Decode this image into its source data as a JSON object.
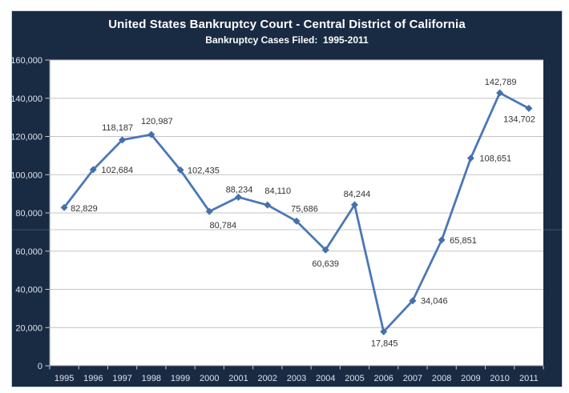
{
  "page": {
    "background": "#FFFFFF"
  },
  "colors": {
    "panel_bg": "#192B43",
    "panel_border": "#CBD2DD",
    "plot_bg": "#FFFFFF",
    "gridline": "#C3C3C3",
    "axis_line_x": "#76808B",
    "axis_line_y": "#8C939C",
    "tick": "#C6CCD5",
    "axis_text": "#DDE3EC",
    "title_text": "#FFFFFF",
    "series_line": "#4B77B5",
    "marker_fill": "#4470AD",
    "data_label_text": "#333333",
    "seam_on_plot": "#C9C9C9",
    "seam_on_panel": "rgba(255,255,255,0.18)"
  },
  "chart_data": {
    "type": "line",
    "title": "United States Bankruptcy Court - Central District of California",
    "subtitle": "Bankruptcy Cases Filed:  1995-2011",
    "categories": [
      "1995",
      "1996",
      "1997",
      "1998",
      "1999",
      "2000",
      "2001",
      "2002",
      "2003",
      "2004",
      "2005",
      "2006",
      "2007",
      "2008",
      "2009",
      "2010",
      "2011"
    ],
    "values": [
      82829,
      102684,
      118187,
      120987,
      102435,
      80784,
      88234,
      84110,
      75686,
      60639,
      84244,
      17845,
      34046,
      65851,
      108651,
      142789,
      134702
    ],
    "point_labels": [
      "82,829",
      "102,684",
      "118,187",
      "120,987",
      "102,435",
      "80,784",
      "88,234",
      "84,110",
      "75,686",
      "60,639",
      "84,244",
      "17,845",
      "34,046",
      "65,851",
      "108,651",
      "142,789",
      "134,702"
    ],
    "xlabel": "",
    "ylabel": "",
    "ylim": [
      0,
      160000
    ],
    "ytick_step": 20000,
    "ytick_labels": [
      "0",
      "20,000",
      "40,000",
      "60,000",
      "80,000",
      "100,000",
      "120,000",
      "140,000",
      "160,000"
    ],
    "grid": true,
    "legend": "none",
    "marker": "diamond"
  },
  "label_offsets": [
    [
      8,
      5,
      "start"
    ],
    [
      10,
      4,
      "start"
    ],
    [
      -6,
      -12,
      "middle"
    ],
    [
      7,
      -13,
      "middle"
    ],
    [
      9,
      4,
      "start"
    ],
    [
      17,
      21,
      "middle"
    ],
    [
      1,
      -6,
      "middle"
    ],
    [
      13,
      -14,
      "middle"
    ],
    [
      10,
      -12,
      "middle"
    ],
    [
      0,
      21,
      "middle"
    ],
    [
      3,
      -10,
      "middle"
    ],
    [
      1,
      18,
      "middle"
    ],
    [
      10,
      4,
      "start"
    ],
    [
      10,
      4,
      "start"
    ],
    [
      11,
      4,
      "start"
    ],
    [
      1,
      -10,
      "middle"
    ],
    [
      8,
      17,
      "end"
    ]
  ]
}
